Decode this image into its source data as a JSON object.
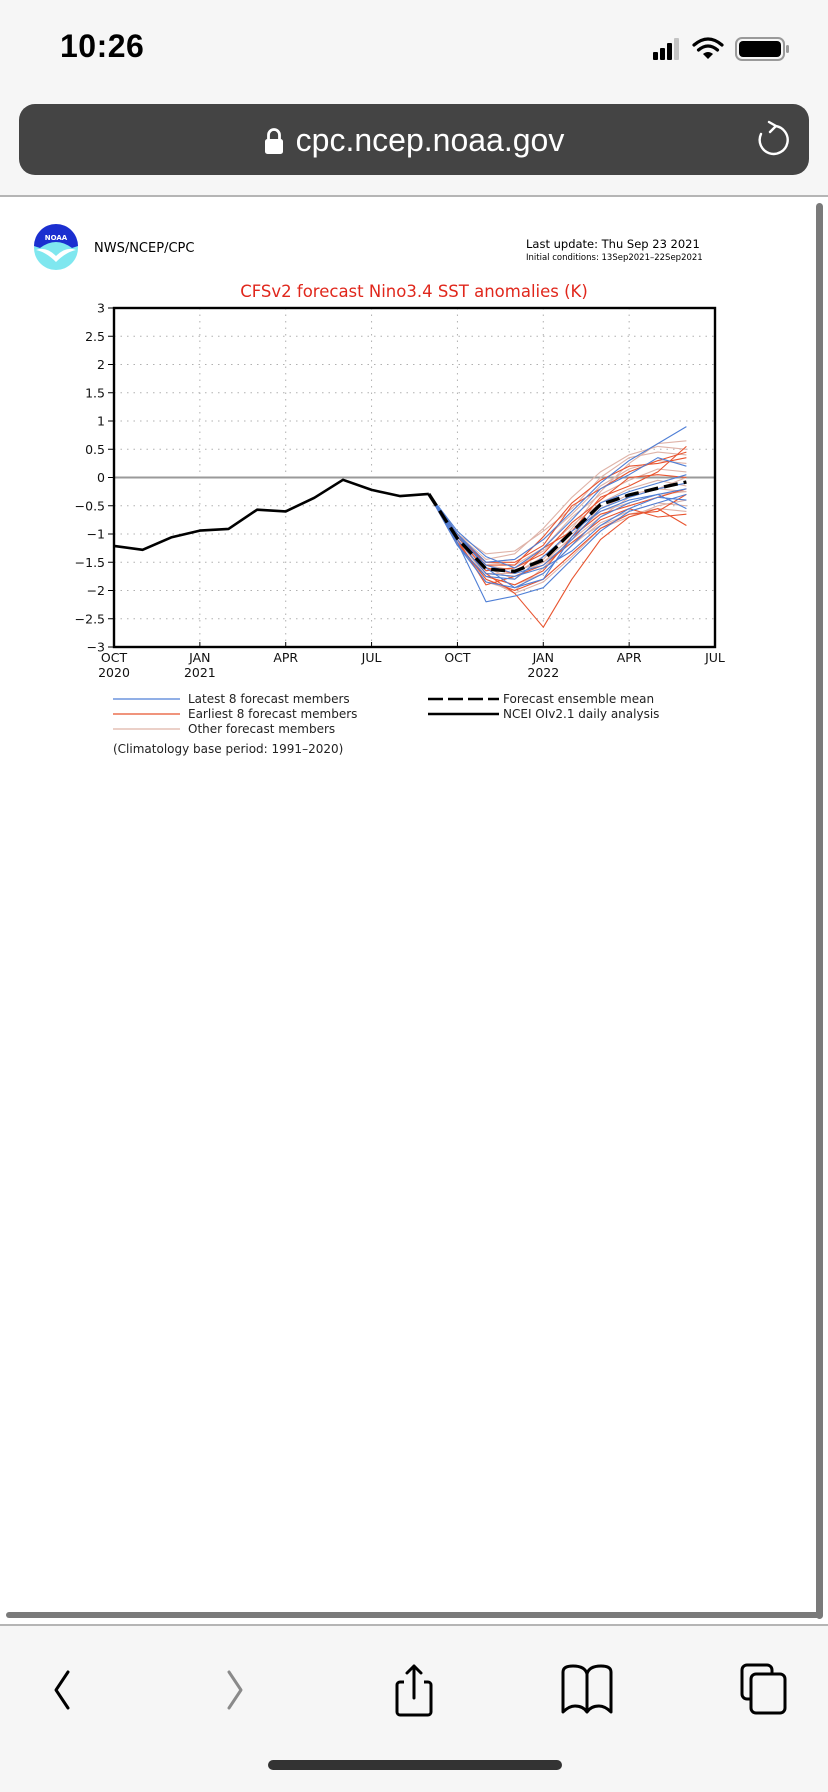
{
  "status_bar": {
    "time": "10:26",
    "icons": [
      "cellular-signal-icon",
      "wifi-icon",
      "battery-icon"
    ]
  },
  "browser": {
    "url": "cpc.ncep.noaa.gov",
    "toolbar": [
      "back-icon",
      "forward-icon",
      "share-icon",
      "bookmarks-icon",
      "tabs-icon"
    ]
  },
  "header": {
    "logo_text": "NOAA",
    "org": "NWS/NCEP/CPC",
    "last_update": "Last update: Thu Sep 23 2021",
    "initial_conditions": "Initial conditions: 13Sep2021–22Sep2021"
  },
  "colors": {
    "latest": "#4f7fd6",
    "earliest": "#e8542f",
    "other": "#dfb3a8",
    "title": "#e0271c",
    "url_bar": "#444444"
  },
  "chart_data": {
    "type": "line",
    "title": "CFSv2 forecast Nino3.4 SST anomalies (K)",
    "xlabel": "",
    "ylabel": "",
    "ylim": [
      -3,
      3
    ],
    "yticks": [
      3,
      2.5,
      2,
      1.5,
      1,
      0.5,
      0,
      -0.5,
      -1,
      -1.5,
      -2,
      -2.5,
      -3
    ],
    "ytick_labels": [
      "3",
      "2.5",
      "2",
      "1.5",
      "1",
      "0.5",
      "0",
      "−0.5",
      "−1",
      "−1.5",
      "−2",
      "−2.5",
      "−3"
    ],
    "xticks": [
      {
        "month_index": 0,
        "label": "OCT",
        "year": "2020"
      },
      {
        "month_index": 3,
        "label": "JAN",
        "year": "2021"
      },
      {
        "month_index": 6,
        "label": "APR",
        "year": ""
      },
      {
        "month_index": 9,
        "label": "JUL",
        "year": ""
      },
      {
        "month_index": 12,
        "label": "OCT",
        "year": ""
      },
      {
        "month_index": 15,
        "label": "JAN",
        "year": "2022"
      },
      {
        "month_index": 18,
        "label": "APR",
        "year": ""
      },
      {
        "month_index": 21,
        "label": "JUL",
        "year": ""
      }
    ],
    "xlim": [
      0,
      21
    ],
    "grid": true,
    "observed": {
      "name": "NCEI OIv2.1 daily analysis",
      "month_index": [
        0,
        1,
        2,
        3,
        4,
        5,
        6,
        7,
        8,
        9,
        10,
        11
      ],
      "values": [
        -1.21,
        -1.28,
        -1.06,
        -0.94,
        -0.91,
        -0.57,
        -0.6,
        -0.36,
        -0.04,
        -0.22,
        -0.33,
        -0.29
      ]
    },
    "ensemble_mean": {
      "name": "Forecast ensemble mean",
      "month_index": [
        11,
        12,
        13,
        14,
        15,
        16,
        17,
        18,
        19,
        20
      ],
      "values": [
        -0.29,
        -1.08,
        -1.62,
        -1.66,
        -1.46,
        -0.96,
        -0.48,
        -0.31,
        -0.19,
        -0.08
      ]
    },
    "members_month_index": [
      11,
      12,
      13,
      14,
      15,
      16,
      17,
      18,
      19,
      20
    ],
    "latest_members": [
      [
        -0.29,
        -1.05,
        -1.55,
        -1.7,
        -1.55,
        -1.1,
        -0.55,
        -0.35,
        -0.2,
        -0.1
      ],
      [
        -0.29,
        -1.2,
        -1.85,
        -1.95,
        -1.7,
        -1.2,
        -0.7,
        -0.45,
        -0.3,
        -0.2
      ],
      [
        -0.29,
        -1.0,
        -1.5,
        -1.45,
        -1.1,
        -0.6,
        -0.1,
        0.3,
        0.6,
        0.9
      ],
      [
        -0.29,
        -1.15,
        -2.2,
        -2.1,
        -1.95,
        -1.45,
        -0.95,
        -0.6,
        -0.45,
        -0.3
      ],
      [
        -0.29,
        -0.95,
        -1.4,
        -1.6,
        -1.25,
        -0.75,
        -0.2,
        0.05,
        0.35,
        0.2
      ],
      [
        -0.29,
        -1.1,
        -1.7,
        -1.75,
        -1.6,
        -1.3,
        -0.85,
        -0.55,
        -0.35,
        -0.4
      ],
      [
        -0.29,
        -1.0,
        -1.6,
        -1.95,
        -1.8,
        -1.05,
        -0.45,
        -0.25,
        -0.1,
        0.05
      ],
      [
        -0.29,
        -1.2,
        -1.75,
        -1.8,
        -1.4,
        -0.95,
        -0.6,
        -0.4,
        -0.3,
        -0.55
      ]
    ],
    "earliest_members": [
      [
        -0.29,
        -1.1,
        -1.7,
        -2.05,
        -2.65,
        -1.8,
        -1.1,
        -0.7,
        -0.55,
        -0.85
      ],
      [
        -0.29,
        -1.05,
        -1.65,
        -1.6,
        -1.35,
        -0.8,
        -0.4,
        0.0,
        0.05,
        0.0
      ],
      [
        -0.29,
        -1.15,
        -1.8,
        -2.0,
        -1.8,
        -1.35,
        -0.9,
        -0.65,
        -0.6,
        -0.3
      ],
      [
        -0.29,
        -1.0,
        -1.55,
        -1.55,
        -1.05,
        -0.45,
        -0.05,
        0.2,
        0.25,
        0.35
      ],
      [
        -0.29,
        -1.1,
        -1.9,
        -1.75,
        -1.55,
        -1.15,
        -0.75,
        -0.55,
        -0.7,
        -0.65
      ],
      [
        -0.29,
        -1.0,
        -1.6,
        -1.7,
        -1.25,
        -0.95,
        -0.35,
        -0.15,
        0.1,
        0.55
      ],
      [
        -0.29,
        -1.2,
        -1.75,
        -1.9,
        -1.65,
        -1.05,
        -0.65,
        -0.5,
        -0.35,
        -0.2
      ],
      [
        -0.29,
        -1.05,
        -1.5,
        -1.5,
        -1.2,
        -0.5,
        -0.2,
        0.1,
        0.3,
        0.45
      ]
    ],
    "other_members": [
      [
        -0.29,
        -1.0,
        -1.45,
        -1.35,
        -0.9,
        -0.35,
        0.1,
        0.4,
        0.55,
        0.5
      ],
      [
        -0.29,
        -1.1,
        -1.7,
        -1.75,
        -1.5,
        -1.05,
        -0.6,
        -0.45,
        -0.3,
        -0.25
      ],
      [
        -0.29,
        -1.05,
        -1.6,
        -1.8,
        -1.45,
        -0.9,
        -0.25,
        0.25,
        0.6,
        0.65
      ],
      [
        -0.29,
        -1.15,
        -1.8,
        -2.05,
        -1.85,
        -1.4,
        -0.9,
        -0.7,
        -0.5,
        -0.4
      ],
      [
        -0.29,
        -1.0,
        -1.5,
        -1.55,
        -1.25,
        -0.7,
        -0.3,
        -0.05,
        0.15,
        0.1
      ],
      [
        -0.29,
        -1.1,
        -1.75,
        -1.9,
        -1.7,
        -1.2,
        -0.8,
        -0.6,
        -0.45,
        -0.5
      ],
      [
        -0.29,
        -1.05,
        -1.65,
        -1.6,
        -1.3,
        -0.85,
        -0.45,
        -0.2,
        -0.05,
        -0.15
      ],
      [
        -0.29,
        -1.0,
        -1.35,
        -1.3,
        -0.95,
        -0.55,
        0.0,
        0.35,
        0.45,
        0.4
      ],
      [
        -0.29,
        -1.15,
        -1.85,
        -2.0,
        -1.6,
        -1.1,
        -0.7,
        -0.35,
        -0.2,
        -0.25
      ],
      [
        -0.29,
        -1.1,
        -1.7,
        -1.7,
        -1.4,
        -1.0,
        -0.55,
        -0.3,
        -0.2,
        0.0
      ],
      [
        -0.29,
        -1.05,
        -1.55,
        -1.65,
        -1.5,
        -1.15,
        -0.85,
        -0.65,
        -0.55,
        -0.6
      ],
      [
        -0.29,
        -1.0,
        -1.5,
        -1.45,
        -1.1,
        -0.65,
        -0.15,
        0.15,
        0.3,
        0.25
      ]
    ],
    "legend": {
      "placement": "bottom",
      "items": [
        {
          "label": "Latest 8 forecast members",
          "style": "latest"
        },
        {
          "label": "Earliest 8 forecast members",
          "style": "earliest"
        },
        {
          "label": "Other forecast members",
          "style": "other"
        },
        {
          "label": "Forecast ensemble mean",
          "style": "mean"
        },
        {
          "label": "NCEI OIv2.1 daily analysis",
          "style": "observed"
        }
      ]
    },
    "footnote": "(Climatology base period: 1991–2020)"
  }
}
